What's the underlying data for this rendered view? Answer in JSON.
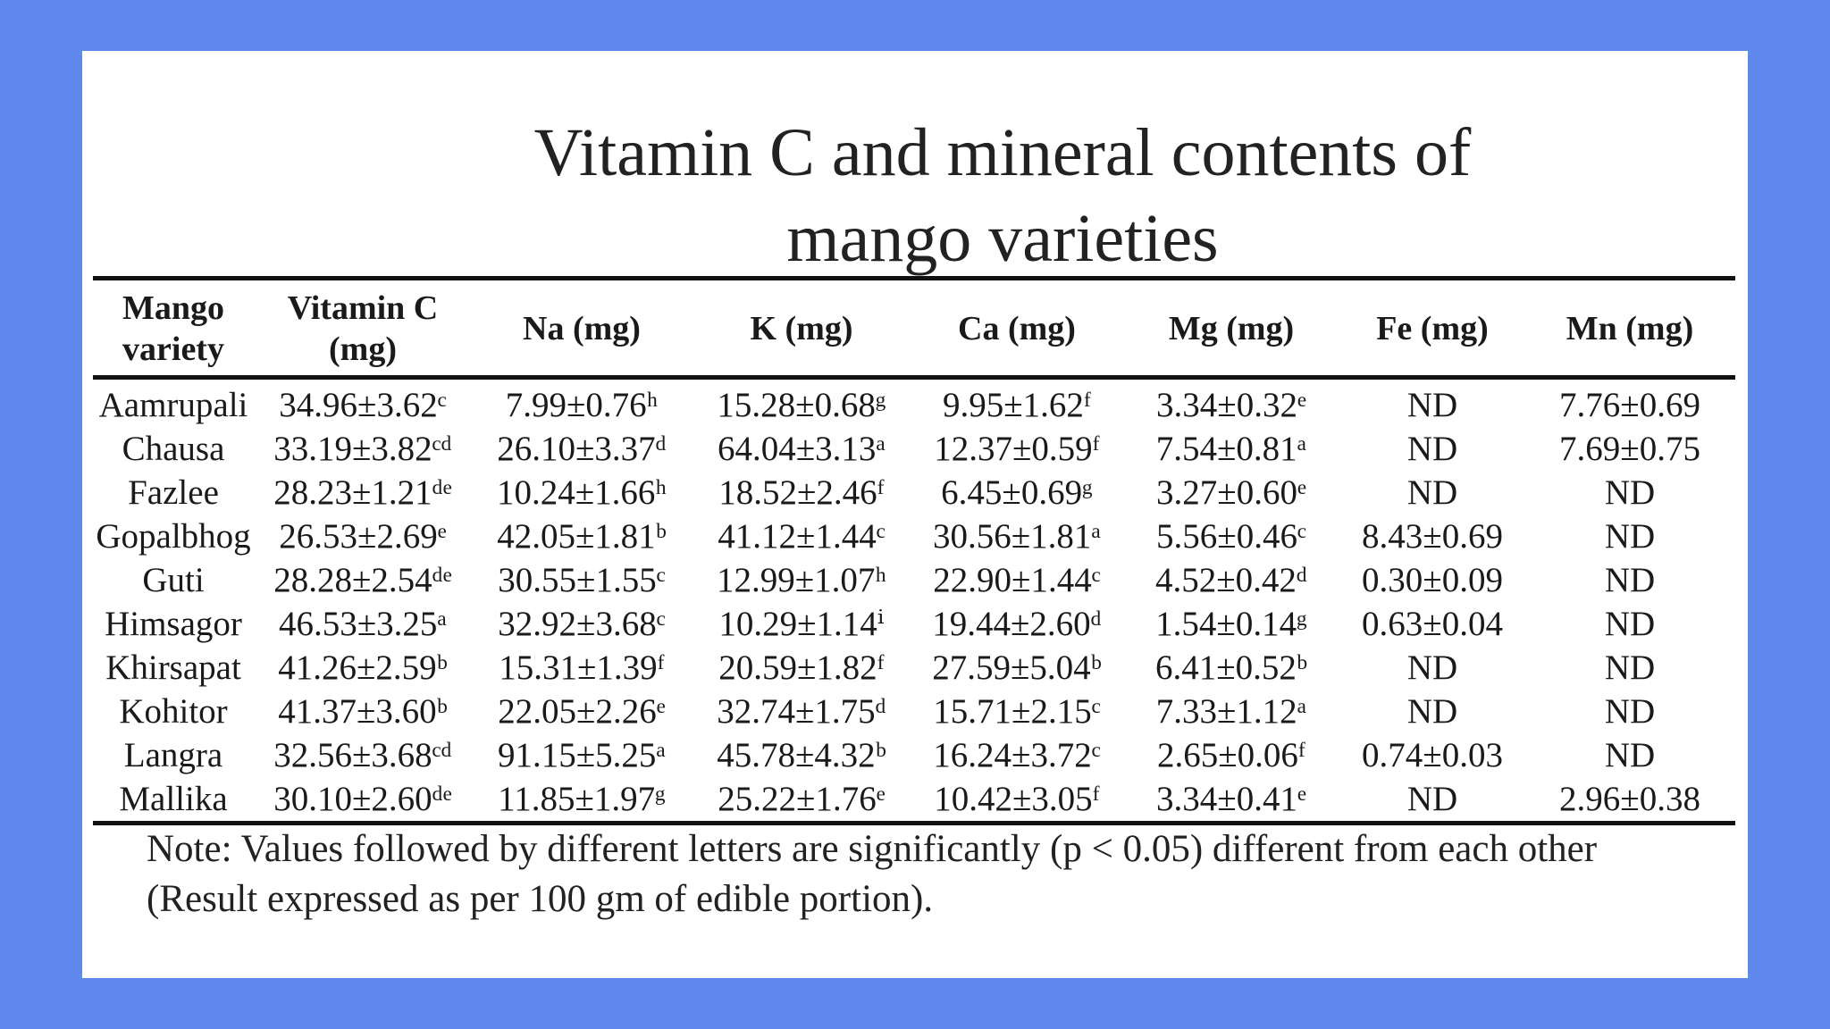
{
  "title": "Vitamin C and mineral contents of mango varieties",
  "headers": [
    "Mango variety",
    "Vitamin C (mg)",
    "Na (mg)",
    "K (mg)",
    "Ca (mg)",
    "Mg (mg)",
    "Fe (mg)",
    "Mn (mg)"
  ],
  "rows": [
    [
      "Aamrupali",
      "34.96±3.62ᶜ",
      "7.99±0.76ʰ",
      "15.28±0.68ᵍ",
      "9.95±1.62ᶠ",
      "3.34±0.32ᵉ",
      "ND",
      "7.76±0.69"
    ],
    [
      "Chausa",
      "33.19±3.82ᶜᵈ",
      "26.10±3.37ᵈ",
      "64.04±3.13ᵃ",
      "12.37±0.59ᶠ",
      "7.54±0.81ᵃ",
      "ND",
      "7.69±0.75"
    ],
    [
      "Fazlee",
      "28.23±1.21ᵈᵉ",
      "10.24±1.66ʰ",
      "18.52±2.46ᶠ",
      "6.45±0.69ᵍ",
      "3.27±0.60ᵉ",
      "ND",
      "ND"
    ],
    [
      "Gopalbhog",
      "26.53±2.69ᵉ",
      "42.05±1.81ᵇ",
      "41.12±1.44ᶜ",
      "30.56±1.81ᵃ",
      "5.56±0.46ᶜ",
      "8.43±0.69",
      "ND"
    ],
    [
      "Guti",
      "28.28±2.54ᵈᵉ",
      "30.55±1.55ᶜ",
      "12.99±1.07ʰ",
      "22.90±1.44ᶜ",
      "4.52±0.42ᵈ",
      "0.30±0.09",
      "ND"
    ],
    [
      "Himsagor",
      "46.53±3.25ᵃ",
      "32.92±3.68ᶜ",
      "10.29±1.14ⁱ",
      "19.44±2.60ᵈ",
      "1.54±0.14ᵍ",
      "0.63±0.04",
      "ND"
    ],
    [
      "Khirsapat",
      "41.26±2.59ᵇ",
      "15.31±1.39ᶠ",
      "20.59±1.82ᶠ",
      "27.59±5.04ᵇ",
      "6.41±0.52ᵇ",
      "ND",
      "ND"
    ],
    [
      "Kohitor",
      "41.37±3.60ᵇ",
      "22.05±2.26ᵉ",
      "32.74±1.75ᵈ",
      "15.71±2.15ᶜ",
      "7.33±1.12ᵃ",
      "ND",
      "ND"
    ],
    [
      "Langra",
      "32.56±3.68ᶜᵈ",
      "91.15±5.25ᵃ",
      "45.78±4.32ᵇ",
      "16.24±3.72ᶜ",
      "2.65±0.06ᶠ",
      "0.74±0.03",
      "ND"
    ],
    [
      "Mallika",
      "30.10±2.60ᵈᵉ",
      "11.85±1.97ᵍ",
      "25.22±1.76ᵉ",
      "10.42±3.05ᶠ",
      "3.34±0.41ᵉ",
      "ND",
      "2.96±0.38"
    ]
  ],
  "note_line1": "Note: Values followed by different letters are significantly (p < 0.05) different from each other",
  "note_line2": "(Result expressed as per 100 gm of edible portion)."
}
